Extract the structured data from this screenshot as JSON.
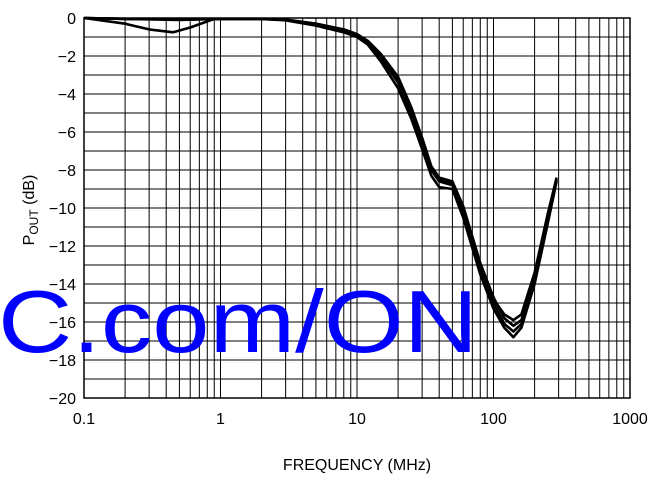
{
  "chart_data": {
    "type": "line",
    "xlabel": "FREQUENCY (MHz)",
    "ylabel_main": "P",
    "ylabel_sub": "OUT",
    "ylabel_rest": " (dB)",
    "x_scale": "log",
    "xlim": [
      0.1,
      1000
    ],
    "ylim": [
      -20,
      0
    ],
    "grid": true,
    "x_ticks": [
      {
        "value": 0.1,
        "label": "0.1"
      },
      {
        "value": 1,
        "label": "1"
      },
      {
        "value": 10,
        "label": "10"
      },
      {
        "value": 100,
        "label": "100"
      },
      {
        "value": 1000,
        "label": "1000"
      }
    ],
    "y_ticks": [
      {
        "value": 0,
        "label": "0"
      },
      {
        "value": -2,
        "label": "−2"
      },
      {
        "value": -4,
        "label": "−4"
      },
      {
        "value": -6,
        "label": "−6"
      },
      {
        "value": -8,
        "label": "−8"
      },
      {
        "value": -10,
        "label": "−10"
      },
      {
        "value": -12,
        "label": "−12"
      },
      {
        "value": -14,
        "label": "−14"
      },
      {
        "value": -16,
        "label": "−16"
      },
      {
        "value": -18,
        "label": "−18"
      },
      {
        "value": -20,
        "label": "−20"
      }
    ],
    "series": [
      {
        "color": "#000000",
        "points": [
          [
            0.1,
            0
          ],
          [
            0.2,
            -0.05
          ],
          [
            0.5,
            -0.1
          ],
          [
            1,
            -0.05
          ],
          [
            2,
            -0.05
          ],
          [
            3,
            -0.1
          ],
          [
            5,
            -0.35
          ],
          [
            8,
            -0.7
          ],
          [
            10,
            -0.95
          ],
          [
            12,
            -1.3
          ],
          [
            15,
            -2.1
          ],
          [
            20,
            -3.4
          ],
          [
            25,
            -5.0
          ],
          [
            30,
            -6.6
          ],
          [
            35,
            -8.0
          ],
          [
            40,
            -8.6
          ],
          [
            50,
            -8.8
          ],
          [
            60,
            -10.2
          ],
          [
            80,
            -13.2
          ],
          [
            100,
            -15.0
          ],
          [
            120,
            -16.1
          ],
          [
            140,
            -16.5
          ],
          [
            160,
            -16.1
          ],
          [
            200,
            -13.8
          ],
          [
            250,
            -10.6
          ],
          [
            290,
            -8.5
          ]
        ]
      },
      {
        "color": "#000000",
        "points": [
          [
            0.1,
            0
          ],
          [
            0.2,
            -0.3
          ],
          [
            0.3,
            -0.6
          ],
          [
            0.45,
            -0.75
          ],
          [
            0.6,
            -0.5
          ],
          [
            0.9,
            -0.05
          ],
          [
            2,
            -0.05
          ],
          [
            3,
            -0.1
          ],
          [
            5,
            -0.3
          ],
          [
            8,
            -0.6
          ],
          [
            10,
            -0.85
          ],
          [
            12,
            -1.2
          ],
          [
            15,
            -1.9
          ],
          [
            20,
            -3.1
          ],
          [
            25,
            -4.7
          ],
          [
            30,
            -6.3
          ],
          [
            35,
            -7.8
          ],
          [
            40,
            -8.4
          ],
          [
            50,
            -8.6
          ],
          [
            60,
            -9.9
          ],
          [
            80,
            -12.9
          ],
          [
            100,
            -14.7
          ],
          [
            120,
            -15.8
          ],
          [
            140,
            -16.2
          ],
          [
            160,
            -15.9
          ],
          [
            200,
            -13.6
          ],
          [
            250,
            -10.5
          ],
          [
            290,
            -8.5
          ]
        ]
      },
      {
        "color": "#000000",
        "points": [
          [
            0.1,
            0
          ],
          [
            0.2,
            -0.05
          ],
          [
            0.5,
            -0.08
          ],
          [
            1,
            -0.05
          ],
          [
            2,
            -0.05
          ],
          [
            3,
            -0.12
          ],
          [
            5,
            -0.4
          ],
          [
            8,
            -0.75
          ],
          [
            10,
            -1.0
          ],
          [
            12,
            -1.4
          ],
          [
            15,
            -2.3
          ],
          [
            20,
            -3.7
          ],
          [
            25,
            -5.3
          ],
          [
            30,
            -6.9
          ],
          [
            35,
            -8.3
          ],
          [
            40,
            -8.9
          ],
          [
            50,
            -9.0
          ],
          [
            60,
            -10.5
          ],
          [
            80,
            -13.5
          ],
          [
            100,
            -15.3
          ],
          [
            120,
            -16.3
          ],
          [
            140,
            -16.8
          ],
          [
            160,
            -16.3
          ],
          [
            200,
            -14.0
          ],
          [
            250,
            -10.8
          ],
          [
            290,
            -8.6
          ]
        ]
      },
      {
        "color": "#000000",
        "points": [
          [
            0.1,
            0
          ],
          [
            0.2,
            -0.04
          ],
          [
            0.5,
            -0.06
          ],
          [
            1,
            -0.04
          ],
          [
            2,
            -0.04
          ],
          [
            3,
            -0.08
          ],
          [
            5,
            -0.3
          ],
          [
            8,
            -0.65
          ],
          [
            10,
            -0.9
          ],
          [
            12,
            -1.25
          ],
          [
            15,
            -2.0
          ],
          [
            20,
            -3.2
          ],
          [
            25,
            -4.8
          ],
          [
            30,
            -6.4
          ],
          [
            35,
            -7.9
          ],
          [
            40,
            -8.5
          ],
          [
            50,
            -8.7
          ],
          [
            60,
            -10.0
          ],
          [
            80,
            -13.0
          ],
          [
            100,
            -14.8
          ],
          [
            120,
            -15.6
          ],
          [
            140,
            -15.9
          ],
          [
            160,
            -15.6
          ],
          [
            200,
            -13.4
          ],
          [
            250,
            -10.3
          ],
          [
            290,
            -8.4
          ]
        ]
      }
    ]
  },
  "watermark": {
    "text": "C.com/ON",
    "color": "#0000ff"
  }
}
